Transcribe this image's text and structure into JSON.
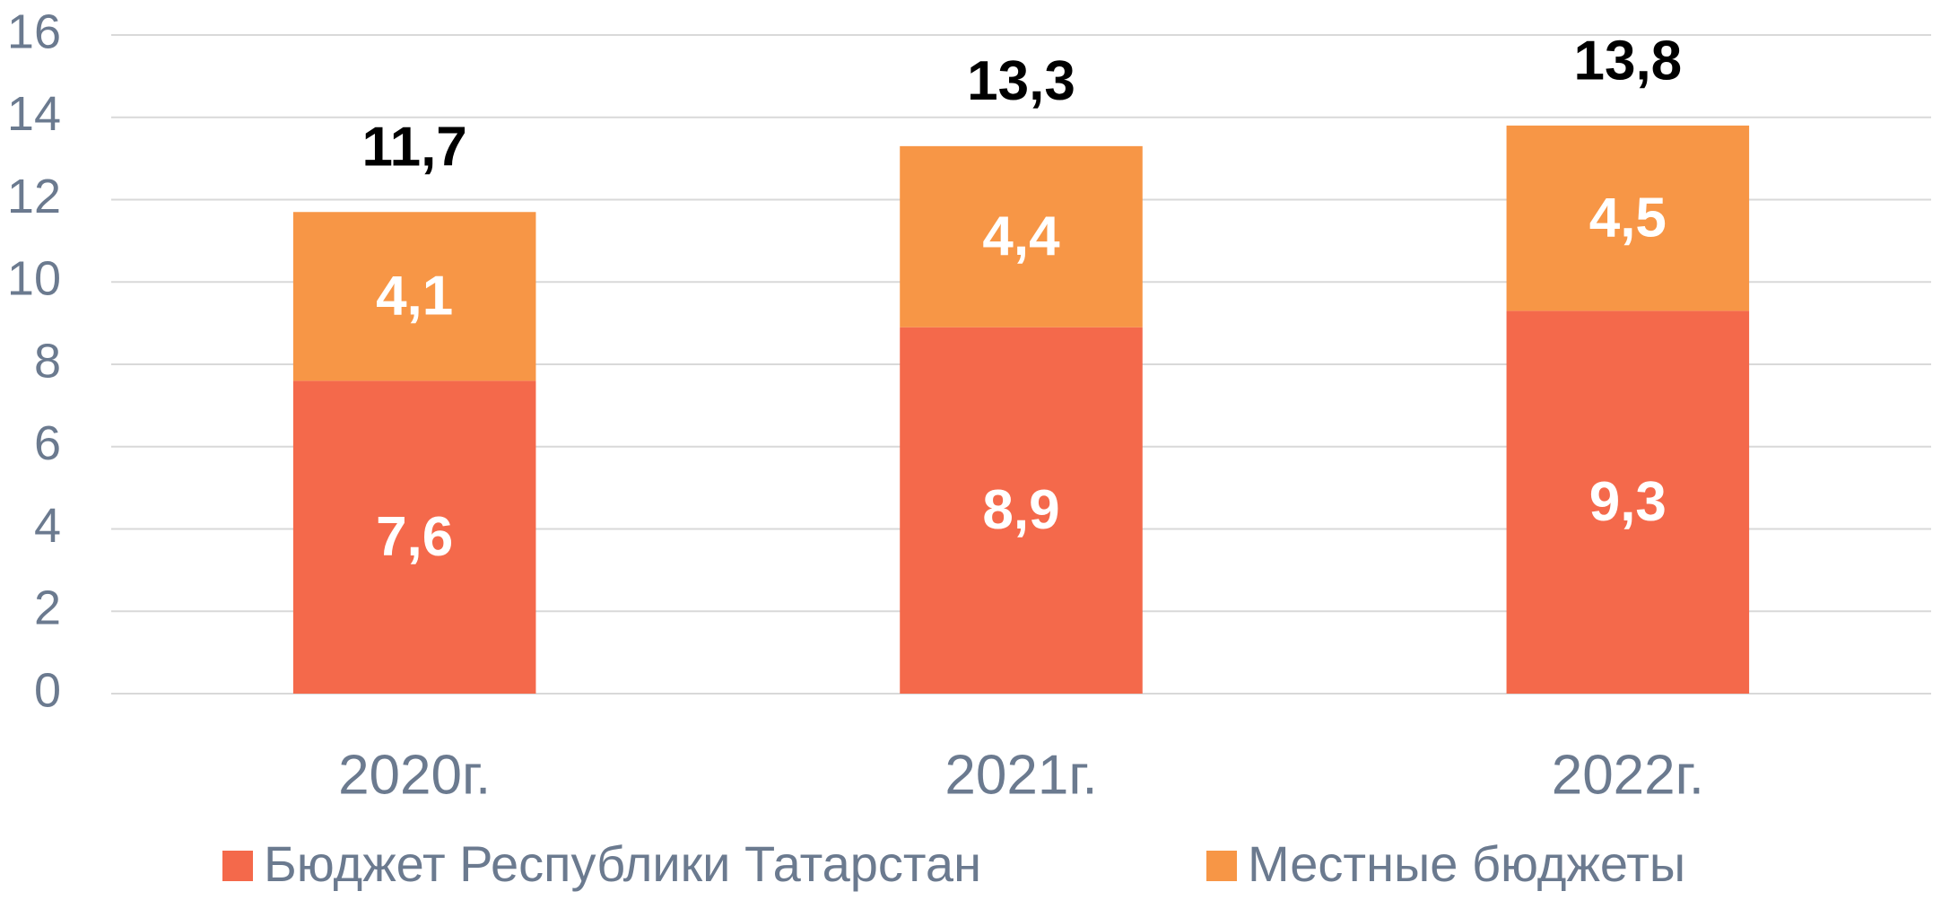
{
  "chart_data": {
    "type": "stacked_bar",
    "categories": [
      "2020г.",
      "2021г.",
      "2022г."
    ],
    "series": [
      {
        "name": "Бюджет Республики Татарстан",
        "color": "#f4694b",
        "values": [
          7.6,
          8.9,
          9.3
        ],
        "value_labels": [
          "7,6",
          "8,9",
          "9,3"
        ]
      },
      {
        "name": "Местные бюджеты",
        "color": "#f79646",
        "values": [
          4.1,
          4.4,
          4.5
        ],
        "value_labels": [
          "4,1",
          "4,4",
          "4,5"
        ]
      }
    ],
    "totals": [
      11.7,
      13.3,
      13.8
    ],
    "total_labels": [
      "11,7",
      "13,3",
      "13,8"
    ],
    "ylim": [
      0,
      16
    ],
    "yticks": [
      0,
      2,
      4,
      6,
      8,
      10,
      12,
      14,
      16
    ],
    "grid": true,
    "legend": "bottom"
  }
}
